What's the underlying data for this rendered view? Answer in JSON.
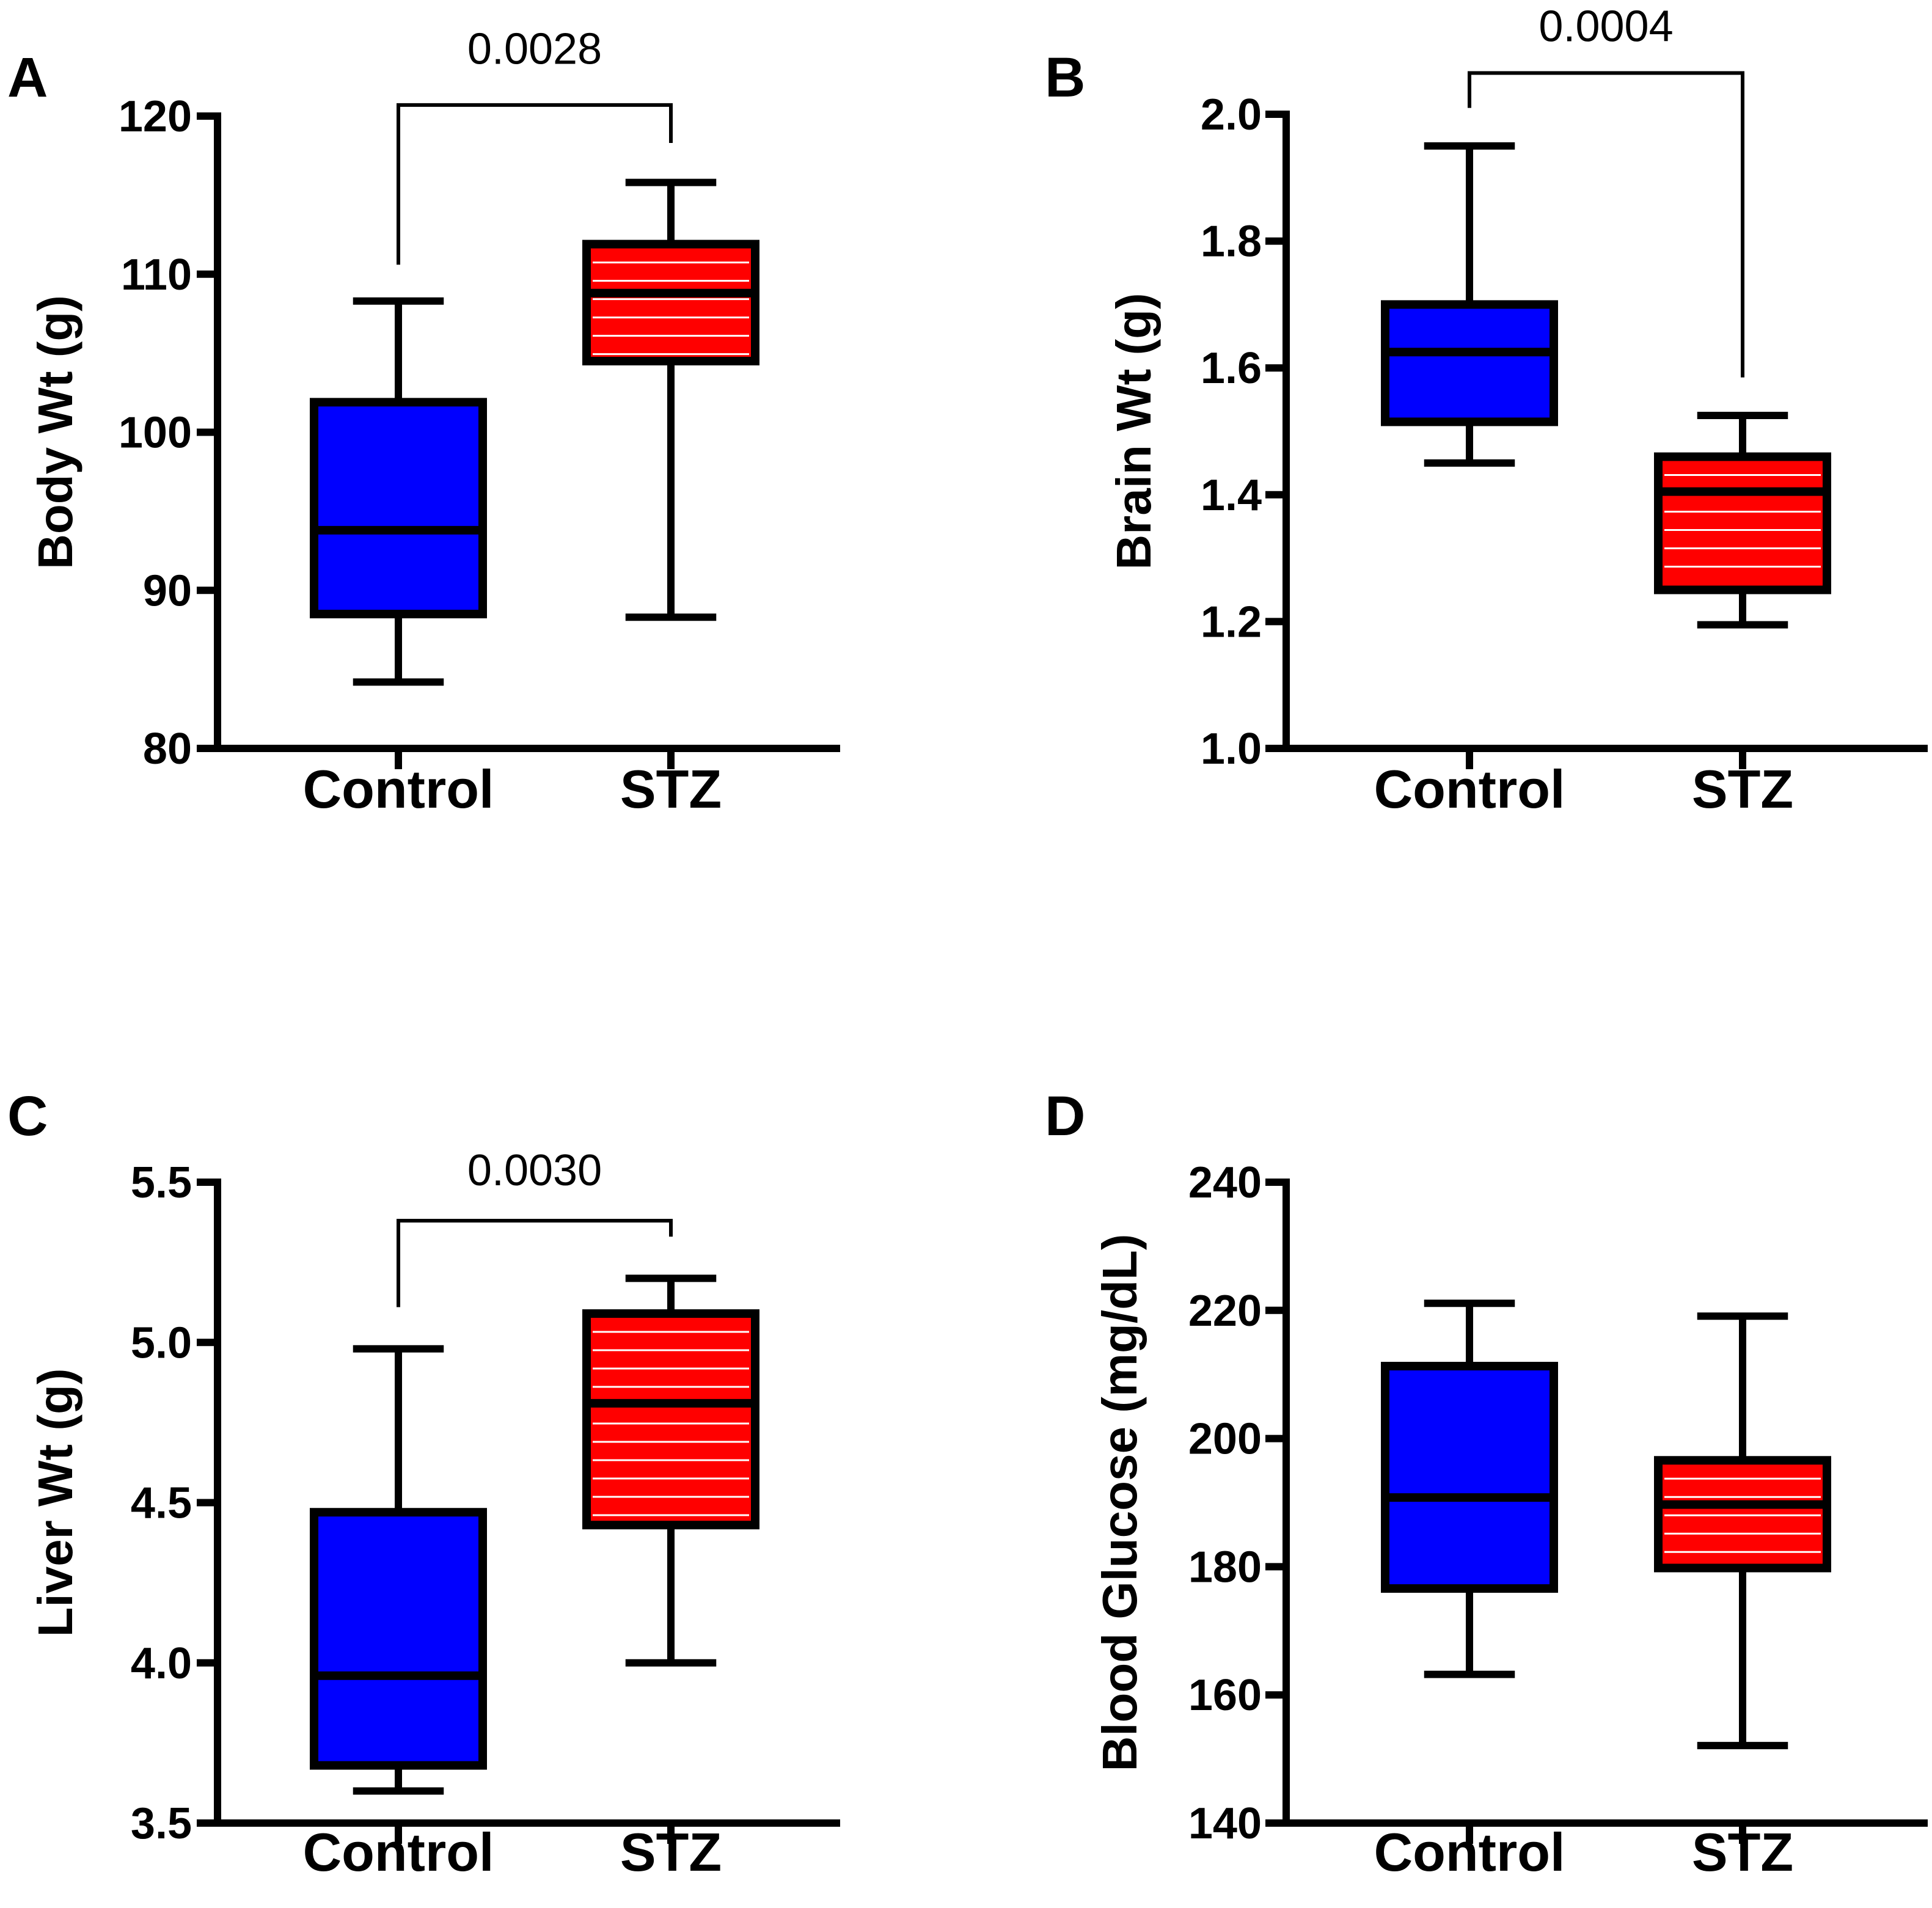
{
  "colors": {
    "control": "#0000ff",
    "stz": "#ff0000",
    "stripe": "#ffffff",
    "axis": "#000000"
  },
  "chart_data": [
    {
      "type": "box",
      "panel": "A",
      "ylabel": "Body Wt  (g)",
      "categories": [
        "Control",
        "STZ"
      ],
      "ylim": [
        80,
        120
      ],
      "yticks": [
        80,
        90,
        100,
        110,
        120
      ],
      "ytick_labels": [
        "80",
        "90",
        "100",
        "110",
        "120"
      ],
      "series": [
        {
          "name": "Control",
          "min": 84.2,
          "q1": 88.5,
          "median": 93.8,
          "q3": 101.9,
          "max": 108.3
        },
        {
          "name": "STZ",
          "min": 88.3,
          "q1": 104.5,
          "median": 108.8,
          "q3": 111.9,
          "max": 115.8
        }
      ],
      "significance": {
        "label": "0.0028",
        "left_top": 110.6,
        "right_top": 118.3,
        "bar": 120.7,
        "label_value": 124.3
      }
    },
    {
      "type": "box",
      "panel": "B",
      "ylabel": "Brain Wt (g)",
      "categories": [
        "Control",
        "STZ"
      ],
      "ylim": [
        1.0,
        2.0
      ],
      "yticks": [
        1.0,
        1.2,
        1.4,
        1.6,
        1.8,
        2.0
      ],
      "ytick_labels": [
        "1.0",
        "1.2",
        "1.4",
        "1.6",
        "1.8",
        "2.0"
      ],
      "series": [
        {
          "name": "Control",
          "min": 1.45,
          "q1": 1.515,
          "median": 1.625,
          "q3": 1.7,
          "max": 1.95
        },
        {
          "name": "STZ",
          "min": 1.195,
          "q1": 1.25,
          "median": 1.405,
          "q3": 1.46,
          "max": 1.525
        }
      ],
      "significance": {
        "label": "0.0004",
        "left_top": 2.01,
        "right_top": 1.585,
        "bar": 2.065,
        "label_value": 2.14
      }
    },
    {
      "type": "box",
      "panel": "C",
      "ylabel": "Liver Wt (g)",
      "categories": [
        "Control",
        "STZ"
      ],
      "ylim": [
        3.5,
        5.5
      ],
      "yticks": [
        3.5,
        4.0,
        4.5,
        5.0,
        5.5
      ],
      "ytick_labels": [
        "3.5",
        "4.0",
        "4.5",
        "5.0",
        "5.5"
      ],
      "series": [
        {
          "name": "Control",
          "min": 3.6,
          "q1": 3.68,
          "median": 3.96,
          "q3": 4.47,
          "max": 4.98
        },
        {
          "name": "STZ",
          "min": 4.0,
          "q1": 4.43,
          "median": 4.81,
          "q3": 5.09,
          "max": 5.2
        }
      ],
      "significance": {
        "label": "0.0030",
        "left_top": 5.11,
        "right_top": 5.33,
        "bar": 5.38,
        "label_value": 5.54
      }
    },
    {
      "type": "box",
      "panel": "D",
      "ylabel": "Blood Glucose (mg/dL)",
      "categories": [
        "Control",
        "STZ"
      ],
      "ylim": [
        140,
        240
      ],
      "yticks": [
        140,
        160,
        180,
        200,
        220,
        240
      ],
      "ytick_labels": [
        "140",
        "160",
        "180",
        "200",
        "220",
        "240"
      ],
      "series": [
        {
          "name": "Control",
          "min": 163.2,
          "q1": 176.6,
          "median": 190.8,
          "q3": 211.3,
          "max": 221.1
        },
        {
          "name": "STZ",
          "min": 152.1,
          "q1": 179.8,
          "median": 189.7,
          "q3": 196.6,
          "max": 219.1
        }
      ],
      "significance": null
    }
  ]
}
